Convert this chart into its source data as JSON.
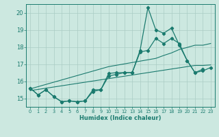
{
  "xlabel": "Humidex (Indice chaleur)",
  "x": [
    0,
    1,
    2,
    3,
    4,
    5,
    6,
    7,
    8,
    9,
    10,
    11,
    12,
    13,
    14,
    15,
    16,
    17,
    18,
    19,
    20,
    21,
    22,
    23
  ],
  "line_high": [
    15.6,
    15.2,
    15.5,
    15.1,
    14.8,
    14.85,
    14.8,
    14.85,
    15.5,
    15.5,
    16.45,
    16.5,
    16.5,
    16.5,
    17.8,
    20.3,
    19.0,
    18.8,
    19.1,
    18.1,
    17.2,
    16.5,
    16.7,
    null
  ],
  "line_mid": [
    15.6,
    15.2,
    15.5,
    15.1,
    14.8,
    14.85,
    14.8,
    14.85,
    15.4,
    15.5,
    16.3,
    16.4,
    16.5,
    16.5,
    17.7,
    17.8,
    18.5,
    18.2,
    18.5,
    18.2,
    17.2,
    16.5,
    16.6,
    16.8
  ],
  "trend_upper": [
    15.55,
    15.68,
    15.81,
    15.94,
    16.07,
    16.2,
    16.33,
    16.46,
    16.59,
    16.72,
    16.85,
    16.93,
    17.01,
    17.09,
    17.17,
    17.25,
    17.33,
    17.5,
    17.65,
    17.85,
    17.97,
    18.1,
    18.1,
    18.2
  ],
  "trend_lower": [
    15.45,
    15.52,
    15.59,
    15.66,
    15.73,
    15.8,
    15.87,
    15.94,
    16.01,
    16.08,
    16.15,
    16.22,
    16.29,
    16.36,
    16.43,
    16.5,
    16.57,
    16.64,
    16.71,
    16.78,
    16.85,
    16.92,
    16.92,
    16.95
  ],
  "line_color": "#1a7a6e",
  "bg_color": "#cce8e0",
  "grid_color": "#aaccC4",
  "xlim": [
    -0.5,
    23.5
  ],
  "ylim": [
    14.5,
    20.5
  ],
  "yticks": [
    15,
    16,
    17,
    18,
    19,
    20
  ],
  "xticks": [
    0,
    1,
    2,
    3,
    4,
    5,
    6,
    7,
    8,
    9,
    10,
    11,
    12,
    13,
    14,
    15,
    16,
    17,
    18,
    19,
    20,
    21,
    22,
    23
  ]
}
